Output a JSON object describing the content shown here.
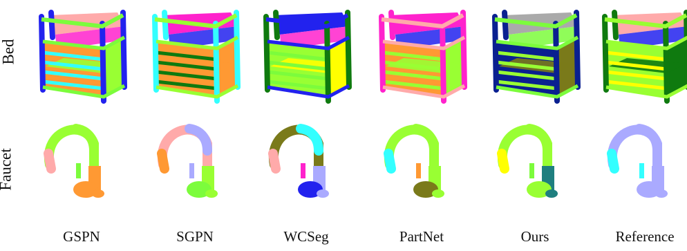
{
  "figure": {
    "row_labels": [
      "Bed",
      "Faucet"
    ],
    "column_labels": [
      "GSPN",
      "SGPN",
      "WCSeg",
      "PartNet",
      "Ours",
      "Reference"
    ],
    "palette": {
      "bright_green": "#7CFC3C",
      "lime": "#99FF33",
      "pink": "#FFAAAA",
      "lavender": "#AAAAFF",
      "orange": "#FF9933",
      "blue": "#2222EE",
      "cyan": "#33FFFF",
      "magenta": "#FF22CC",
      "yellow": "#FFFF00",
      "dark_green": "#0F7A0F",
      "gray": "#AAAAAA",
      "teal": "#1F7F7F",
      "navy": "#0A2090",
      "olive": "#7A7A1A"
    }
  }
}
